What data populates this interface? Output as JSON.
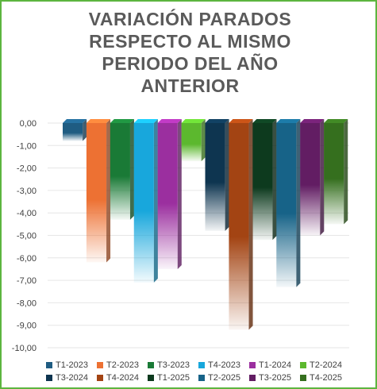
{
  "chart_data": {
    "type": "bar",
    "title": "VARIACIÓN PARADOS\nRESPECTO AL MISMO\nPERIODO DEL AÑO\nANTERIOR",
    "ylim": [
      -10,
      0
    ],
    "yticks": [
      "0,00",
      "-1,00",
      "-2,00",
      "-3,00",
      "-4,00",
      "-5,00",
      "-6,00",
      "-7,00",
      "-8,00",
      "-9,00",
      "-10,00"
    ],
    "grid": true,
    "legend_position": "bottom",
    "series": [
      {
        "name": "T1-2023",
        "value": -0.8,
        "color": "#1f5c82"
      },
      {
        "name": "T2-2023",
        "value": -6.2,
        "color": "#ed7133"
      },
      {
        "name": "T3-2023",
        "value": -4.3,
        "color": "#1a7a36"
      },
      {
        "name": "T4-2023",
        "value": -7.1,
        "color": "#18a7dc"
      },
      {
        "name": "T1-2024",
        "value": -6.5,
        "color": "#9b2f9f"
      },
      {
        "name": "T2-2024",
        "value": -1.7,
        "color": "#5cb82e"
      },
      {
        "name": "T3-2024",
        "value": -4.8,
        "color": "#0e3550"
      },
      {
        "name": "T4-2024",
        "value": -9.2,
        "color": "#a34413"
      },
      {
        "name": "T1-2025",
        "value": -5.2,
        "color": "#0d3a1e"
      },
      {
        "name": "T2-2025",
        "value": -7.3,
        "color": "#176388"
      },
      {
        "name": "T3-2025",
        "value": -5.0,
        "color": "#621d63"
      },
      {
        "name": "T4-2025",
        "value": -4.5,
        "color": "#356f1e"
      }
    ]
  }
}
